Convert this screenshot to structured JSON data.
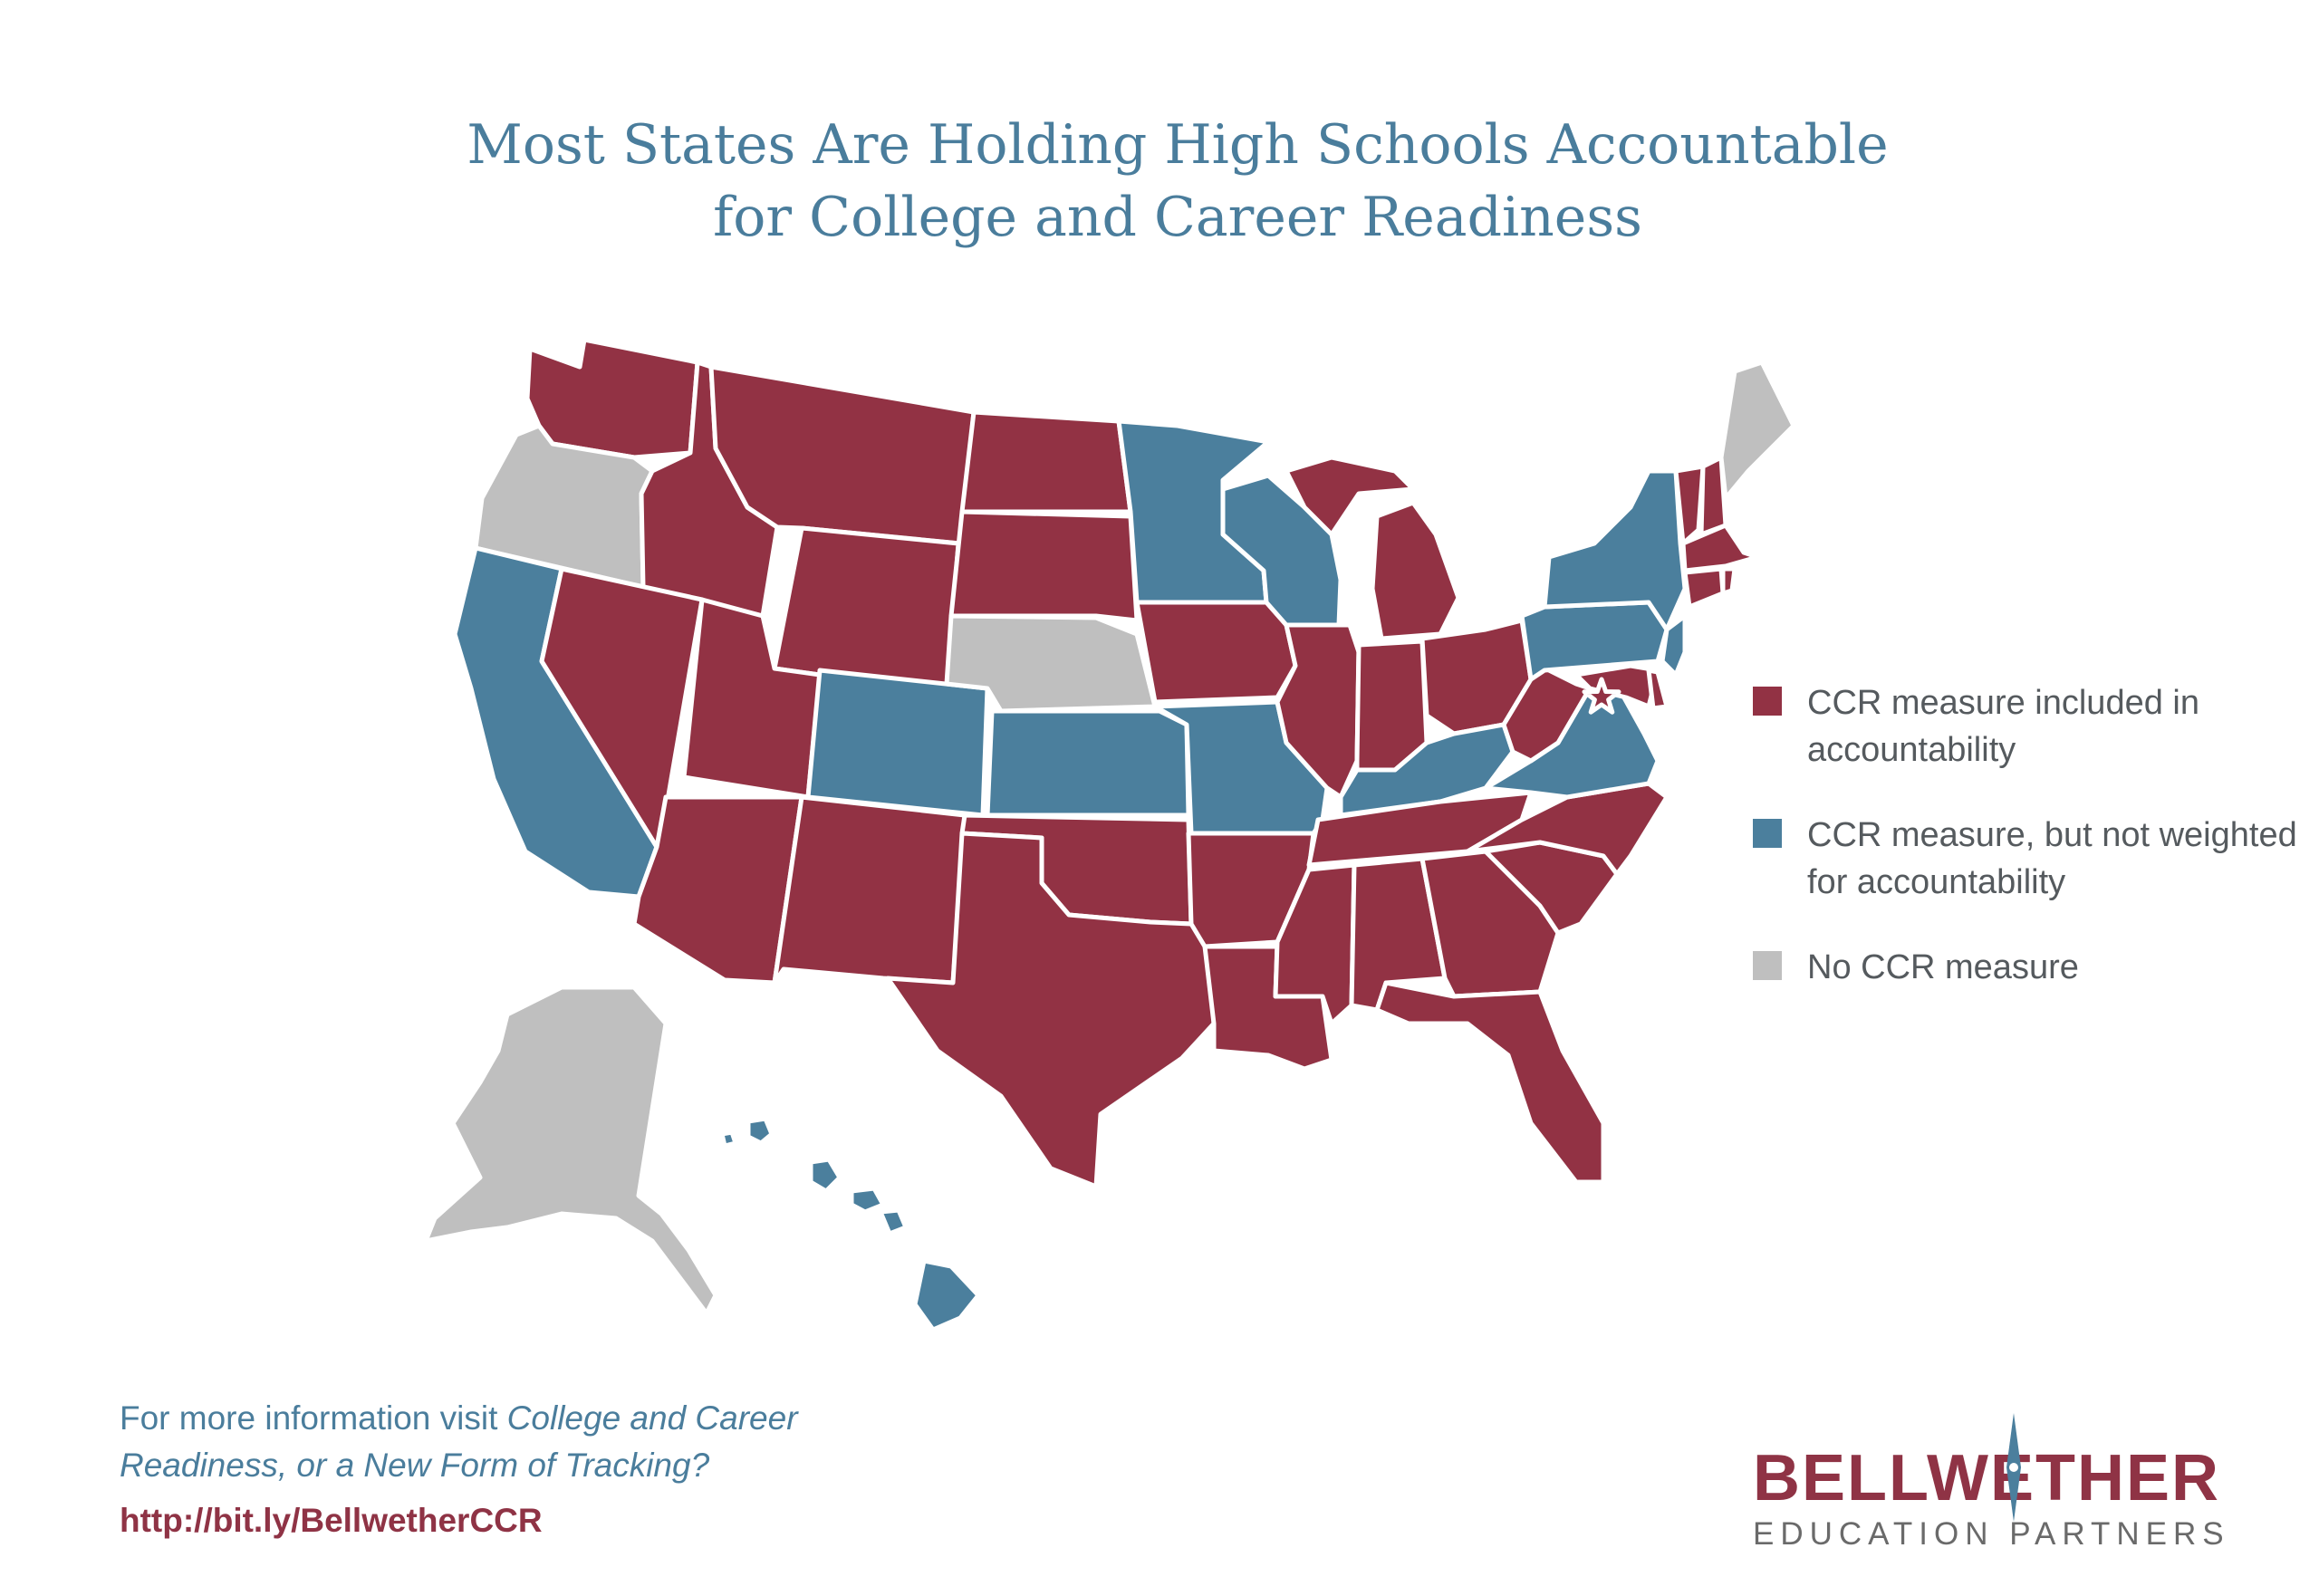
{
  "title": {
    "line1": "Most States Are Holding High Schools Accountable",
    "line2": "for College and Career Readiness"
  },
  "colors": {
    "included": "#923244",
    "not_weighted": "#4b7f9d",
    "none": "#bfbfbf",
    "accent_text": "#4a7d9c"
  },
  "legend": [
    {
      "key": "included",
      "label": "CCR measure included in accountability"
    },
    {
      "key": "not_weighted",
      "label": "CCR measure, but not weighted for accountability"
    },
    {
      "key": "none",
      "label": "No CCR measure"
    }
  ],
  "states": {
    "included": [
      "WA",
      "ID",
      "MT",
      "ND",
      "WY",
      "SD",
      "NV",
      "UT",
      "AZ",
      "NM",
      "TX",
      "OK",
      "IA",
      "IL",
      "MI",
      "IN",
      "OH",
      "WV",
      "AR",
      "LA",
      "MS",
      "AL",
      "TN",
      "GA",
      "FL",
      "SC",
      "NC",
      "MD",
      "DE",
      "DC",
      "VT",
      "NH",
      "MA",
      "CT",
      "RI"
    ],
    "not_weighted": [
      "CA",
      "CO",
      "KS",
      "MN",
      "WI",
      "MO",
      "KY",
      "VA",
      "PA",
      "NY",
      "NJ",
      "HI"
    ],
    "none": [
      "OR",
      "NE",
      "ME",
      "AK"
    ]
  },
  "footer": {
    "prefix": "For more information visit ",
    "link_title": "College and Career Readiness, or a New Form of Tracking?",
    "url": "http://bit.ly/BellwetherCCR"
  },
  "logo": {
    "name": "BELLWETHER",
    "tagline": "EDUCATION PARTNERS"
  }
}
